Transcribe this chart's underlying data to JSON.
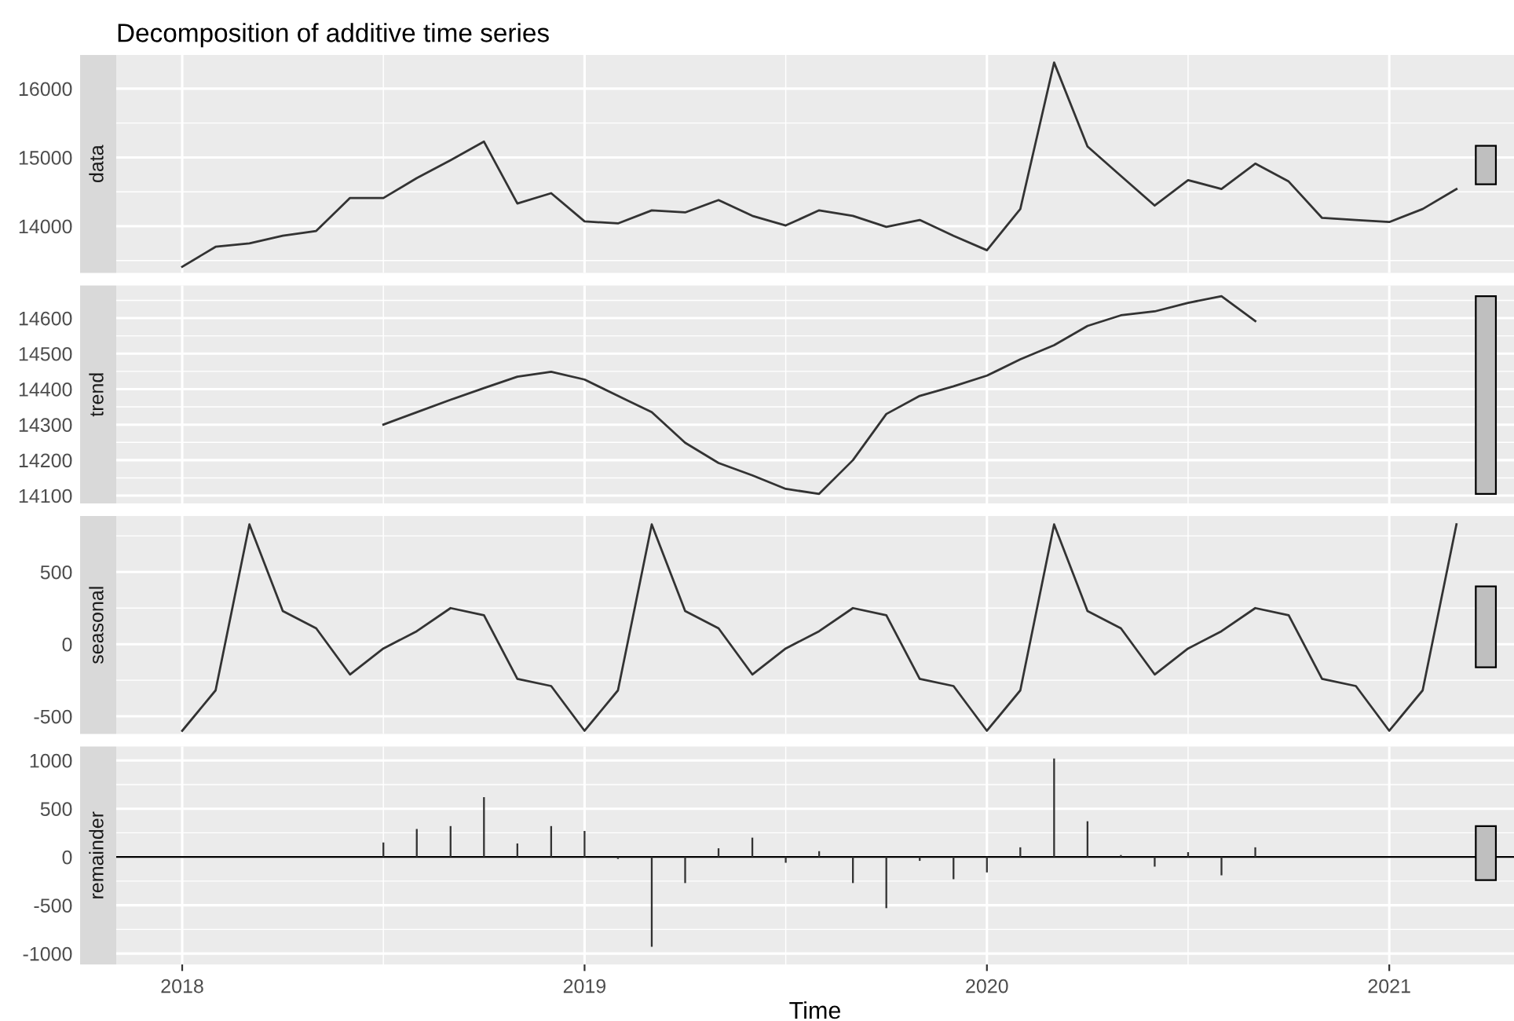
{
  "chart_data": [
    {
      "type": "line",
      "title": "Decomposition of additive time series",
      "ylabel": "data",
      "x": [
        2018,
        2018.083,
        2018.167,
        2018.25,
        2018.333,
        2018.417,
        2018.5,
        2018.583,
        2018.667,
        2018.75,
        2018.833,
        2018.917,
        2019,
        2019.083,
        2019.167,
        2019.25,
        2019.333,
        2019.417,
        2019.5,
        2019.583,
        2019.667,
        2019.75,
        2019.833,
        2019.917,
        2020,
        2020.083,
        2020.167,
        2020.25,
        2020.333,
        2020.417,
        2020.5,
        2020.583,
        2020.667,
        2020.75,
        2020.833,
        2020.917,
        2021,
        2021.083,
        2021.167
      ],
      "series": [
        {
          "color": "#333333",
          "values": [
            13410,
            13700,
            13750,
            13860,
            13930,
            14410,
            14410,
            14700,
            14960,
            15230,
            14330,
            14480,
            14070,
            14040,
            14230,
            14200,
            14380,
            14150,
            14010,
            14230,
            14150,
            13990,
            14090,
            13860,
            13650,
            14250,
            16380,
            15160,
            14730,
            14300,
            14670,
            14540,
            14910,
            14650,
            14120,
            14090,
            14060,
            14250,
            14540
          ]
        },
        {
          "type": "bar",
          "color": "#bfbfbf",
          "x": [
            2021.24
          ],
          "base": [
            14610
          ],
          "values": [
            560
          ]
        }
      ],
      "xlim": [
        2017.836,
        2021.31
      ],
      "xticks": [
        2018,
        2019,
        2020,
        2021
      ],
      "ylim": [
        13320,
        16490
      ],
      "yticks": [
        14000,
        15000,
        16000
      ],
      "grid": true,
      "tick_labels": "y"
    },
    {
      "type": "line",
      "ylabel": "trend",
      "series": [
        {
          "color": "#333333",
          "x": [
            2018.5,
            2018.583,
            2018.667,
            2018.75,
            2018.833,
            2018.917,
            2019,
            2019.083,
            2019.167,
            2019.25,
            2019.333,
            2019.417,
            2019.5,
            2019.583,
            2019.667,
            2019.75,
            2019.833,
            2019.917,
            2020,
            2020.083,
            2020.167,
            2020.25,
            2020.333,
            2020.417,
            2020.5,
            2020.583,
            2020.667
          ],
          "values": [
            14300,
            14335,
            14370,
            14403,
            14435,
            14449,
            14427,
            14381,
            14335,
            14249,
            14192,
            14157,
            14119,
            14105,
            14200,
            14330,
            14381,
            14408,
            14438,
            14484,
            14524,
            14578,
            14608,
            14619,
            14643,
            14662,
            14592
          ]
        },
        {
          "type": "bar",
          "color": "#bfbfbf",
          "x": [
            2021.24
          ],
          "base": [
            14105
          ],
          "values": [
            557
          ]
        }
      ],
      "xlim": [
        2017.836,
        2021.31
      ],
      "xticks": [
        2018,
        2019,
        2020,
        2021
      ],
      "ylim": [
        14078,
        14692
      ],
      "yticks": [
        14100,
        14200,
        14300,
        14400,
        14500,
        14600
      ],
      "grid": true,
      "tick_labels": "y"
    },
    {
      "type": "line",
      "ylabel": "seasonal",
      "x": [
        2018,
        2018.083,
        2018.167,
        2018.25,
        2018.333,
        2018.417,
        2018.5,
        2018.583,
        2018.667,
        2018.75,
        2018.833,
        2018.917,
        2019,
        2019.083,
        2019.167,
        2019.25,
        2019.333,
        2019.417,
        2019.5,
        2019.583,
        2019.667,
        2019.75,
        2019.833,
        2019.917,
        2020,
        2020.083,
        2020.167,
        2020.25,
        2020.333,
        2020.417,
        2020.5,
        2020.583,
        2020.667,
        2020.75,
        2020.833,
        2020.917,
        2021,
        2021.083,
        2021.167
      ],
      "series": [
        {
          "color": "#333333",
          "values": [
            -600,
            -320,
            830,
            230,
            110,
            -210,
            -30,
            90,
            250,
            200,
            -240,
            -290,
            -600,
            -320,
            830,
            230,
            110,
            -210,
            -30,
            90,
            250,
            200,
            -240,
            -290,
            -600,
            -320,
            830,
            230,
            110,
            -210,
            -30,
            90,
            250,
            200,
            -240,
            -290,
            -600,
            -320,
            830
          ]
        },
        {
          "type": "bar",
          "color": "#bfbfbf",
          "x": [
            2021.24
          ],
          "base": [
            -160
          ],
          "values": [
            560
          ]
        }
      ],
      "xlim": [
        2017.836,
        2021.31
      ],
      "xticks": [
        2018,
        2019,
        2020,
        2021
      ],
      "ylim": [
        -622,
        888
      ],
      "yticks": [
        -500,
        0,
        500
      ],
      "grid": true,
      "tick_labels": "y"
    },
    {
      "type": "bar",
      "ylabel": "remainder",
      "xlabel": "Time",
      "series": [
        {
          "color": "#333333",
          "x": [
            2018.5,
            2018.583,
            2018.667,
            2018.75,
            2018.833,
            2018.917,
            2019,
            2019.083,
            2019.167,
            2019.25,
            2019.333,
            2019.417,
            2019.5,
            2019.583,
            2019.667,
            2019.75,
            2019.833,
            2019.917,
            2020,
            2020.083,
            2020.167,
            2020.25,
            2020.333,
            2020.417,
            2020.5,
            2020.583,
            2020.667
          ],
          "values": [
            150,
            290,
            320,
            620,
            140,
            320,
            270,
            -20,
            -930,
            -270,
            90,
            200,
            -60,
            60,
            -270,
            -530,
            -40,
            -230,
            -160,
            100,
            1020,
            370,
            20,
            -100,
            50,
            -190,
            100
          ]
        },
        {
          "color": "#bfbfbf",
          "x": [
            2021.24
          ],
          "base": [
            -240
          ],
          "values": [
            560
          ]
        }
      ],
      "ref_lines": [
        {
          "axis": "y",
          "value": 0,
          "color": "#000000"
        }
      ],
      "xlim": [
        2017.836,
        2021.31
      ],
      "xticks": [
        2018,
        2019,
        2020,
        2021
      ],
      "ylim": [
        -1113,
        1144
      ],
      "yticks": [
        -1000,
        -500,
        0,
        500,
        1000
      ],
      "grid": true
    }
  ]
}
